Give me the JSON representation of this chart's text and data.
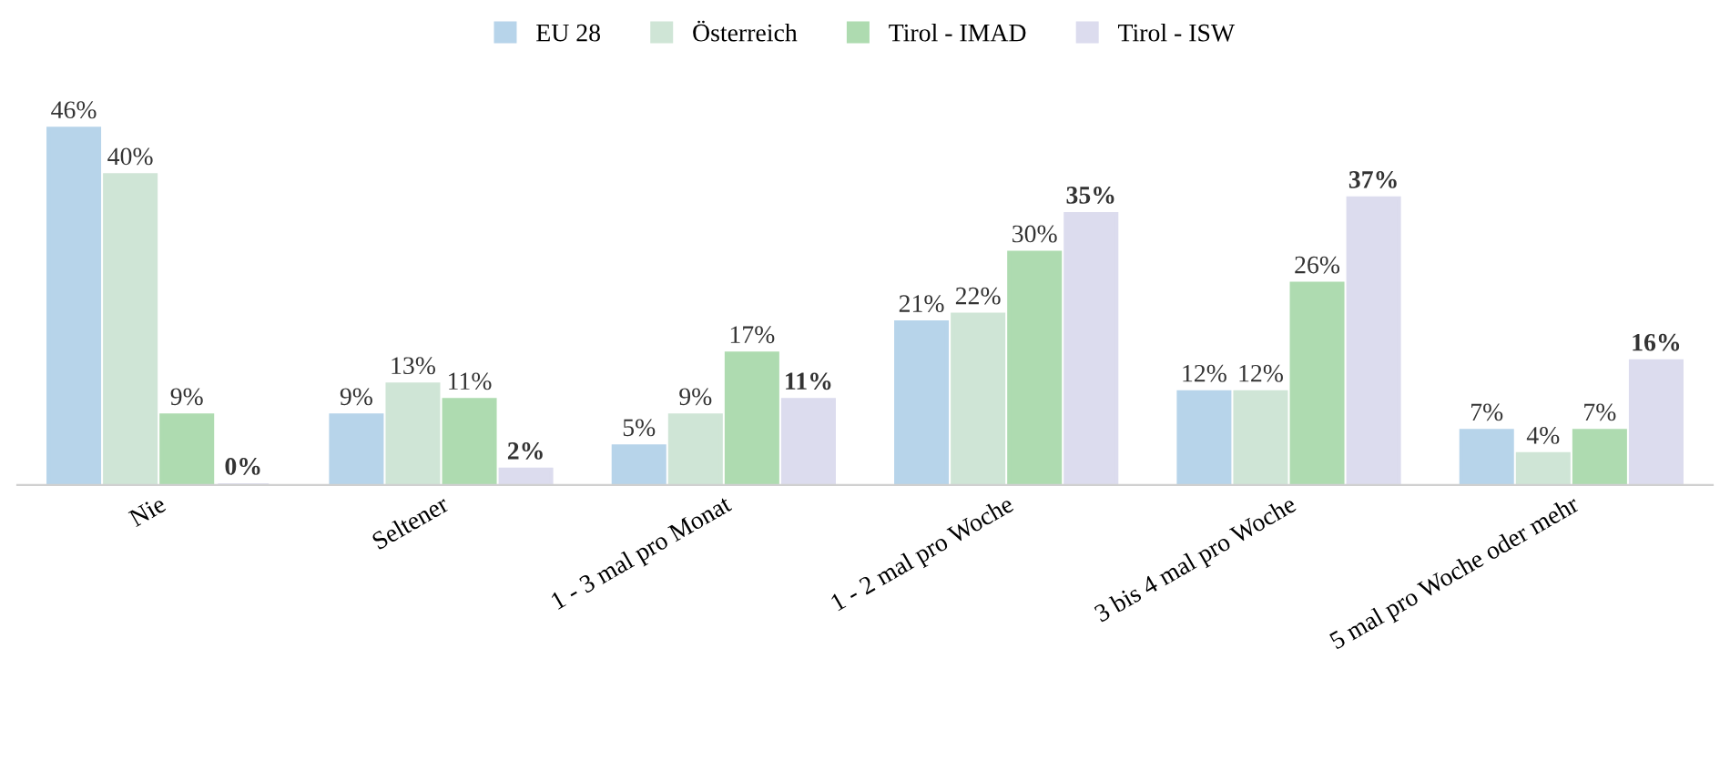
{
  "chart_data": {
    "type": "bar",
    "categories": [
      "Nie",
      "Seltener",
      "1 - 3 mal pro Monat",
      "1 - 2 mal pro Woche",
      "3 bis 4 mal pro Woche",
      "5 mal pro Woche oder mehr"
    ],
    "series": [
      {
        "name": "EU 28",
        "color": "#b7d4ea",
        "values": [
          46,
          9,
          5,
          21,
          12,
          7
        ],
        "value_labels": [
          "46%",
          "9%",
          "5%",
          "21%",
          "12%",
          "7%"
        ]
      },
      {
        "name": "Österreich",
        "color": "#cfe5d6",
        "values": [
          40,
          13,
          9,
          22,
          12,
          4
        ],
        "value_labels": [
          "40%",
          "13%",
          "9%",
          "22%",
          "12%",
          "4%"
        ]
      },
      {
        "name": "Tirol - IMAD",
        "color": "#aedbb0",
        "values": [
          9,
          11,
          17,
          30,
          26,
          7
        ],
        "value_labels": [
          "9%",
          "11%",
          "17%",
          "30%",
          "26%",
          "7%"
        ]
      },
      {
        "name": "Tirol - ISW",
        "color": "#dcdcee",
        "values": [
          0,
          2,
          11,
          35,
          37,
          16
        ],
        "value_labels": [
          "0%",
          "2%",
          "11%",
          "35%",
          "37%",
          "16%"
        ]
      }
    ],
    "legend": "top",
    "grid": false
  }
}
